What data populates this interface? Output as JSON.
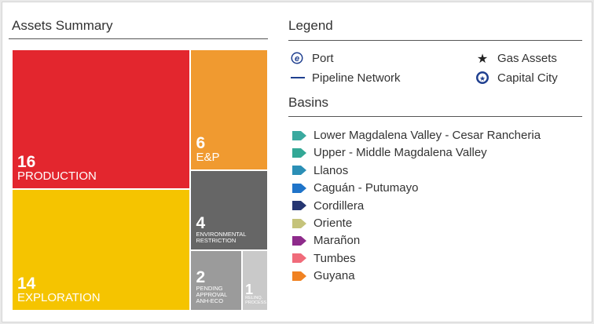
{
  "chart_data": {
    "type": "treemap",
    "title": "Assets Summary",
    "categories": [
      "PRODUCTION",
      "EXPLORATION",
      "E&P",
      "ENVIRONMENTAL RESTRICTION",
      "PENDING APPROVAL ANH-ECO",
      "RELINQ. PROCESS"
    ],
    "values": [
      16,
      14,
      6,
      4,
      2,
      1
    ],
    "colors": [
      "#e3262e",
      "#f5c400",
      "#f09a30",
      "#666666",
      "#9b9b9b",
      "#c9c9c9"
    ]
  },
  "legend": {
    "title": "Legend",
    "items": [
      {
        "label": "Port",
        "icon": "port"
      },
      {
        "label": "Gas Assets",
        "icon": "star"
      },
      {
        "label": "Pipeline Network",
        "icon": "line"
      },
      {
        "label": "Capital City",
        "icon": "capital"
      }
    ]
  },
  "basins": {
    "title": "Basins",
    "items": [
      {
        "label": "Lower Magdalena Valley - Cesar Rancheria",
        "color": "#3aa99f"
      },
      {
        "label": "Upper - Middle Magdalena Valley",
        "color": "#33a896"
      },
      {
        "label": "Llanos",
        "color": "#2b8fb6"
      },
      {
        "label": "Caguán - Putumayo",
        "color": "#1f74c9"
      },
      {
        "label": "Cordillera",
        "color": "#263672"
      },
      {
        "label": "Oriente",
        "color": "#c5c37b"
      },
      {
        "label": "Marañon",
        "color": "#8e2b8b"
      },
      {
        "label": "Tumbes",
        "color": "#f06b7a"
      },
      {
        "label": "Guyana",
        "color": "#f08222"
      }
    ]
  }
}
